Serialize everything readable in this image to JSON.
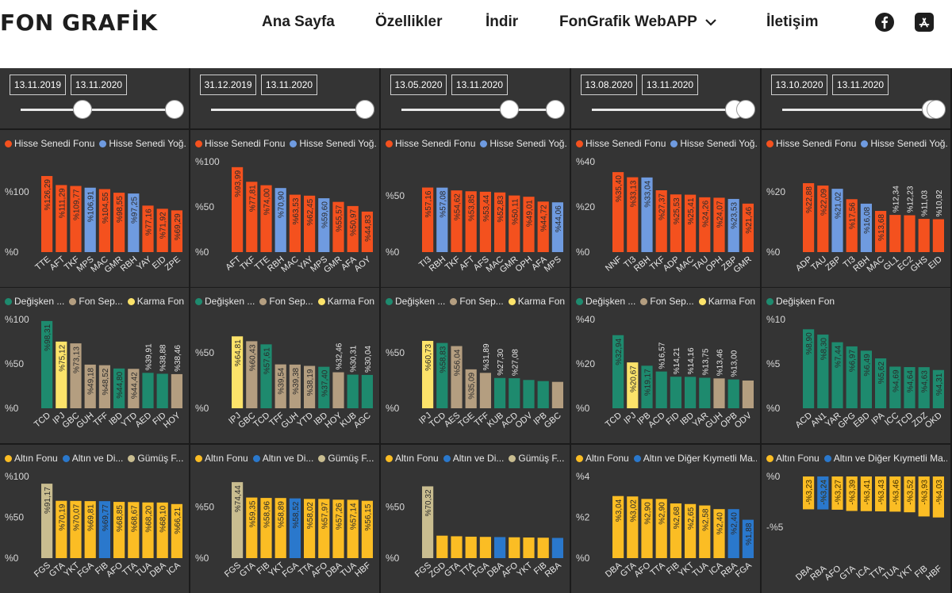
{
  "nav": {
    "logo": "FON GRAFİK",
    "items": [
      "Ana Sayfa",
      "Özellikler",
      "İndir",
      "FonGrafik WebAPP",
      "İletişim"
    ],
    "icons": [
      "chevron-down-icon",
      "facebook-icon",
      "app-store-icon"
    ]
  },
  "colors": {
    "orange": "#f4511e",
    "blue": "#6f9be0",
    "teal": "#1e8a6e",
    "tan": "#b49e80",
    "yellow": "#fce36a",
    "gold": "#fbbd24",
    "blue2": "#2a78cc",
    "khaki": "#c9bd90"
  },
  "columns": [
    {
      "range": {
        "start": "13.11.2019",
        "end": "13.11.2020",
        "slider_from": 0.4,
        "slider_to": 1.0
      }
    },
    {
      "range": {
        "start": "31.12.2019",
        "end": "13.11.2020",
        "slider_from": 1.0,
        "slider_to": 1.0
      }
    },
    {
      "range": {
        "start": "13.05.2020",
        "end": "13.11.2020",
        "slider_from": 0.7,
        "slider_to": 1.0
      }
    },
    {
      "range": {
        "start": "13.08.2020",
        "end": "13.11.2020",
        "slider_from": 0.93,
        "slider_to": 1.0
      }
    },
    {
      "range": {
        "start": "13.10.2020",
        "end": "13.11.2020",
        "slider_from": 0.97,
        "slider_to": 1.0
      }
    }
  ],
  "chart_data": [
    {
      "type": "bar",
      "row": 0,
      "col": 0,
      "legend": [
        {
          "label": "Hisse Senedi Fonu",
          "color": "#f4511e"
        },
        {
          "label": "Hisse Senedi Yoğ...",
          "color": "#6f9be0"
        }
      ],
      "yticks": [
        "%0",
        "%100"
      ],
      "ylim": [
        0,
        150
      ],
      "categories": [
        "TTE",
        "AFT",
        "TKF",
        "MPS",
        "MAC",
        "GMR",
        "RBH",
        "YAY",
        "EID",
        "ZPE"
      ],
      "values": [
        126.29,
        111.29,
        109.77,
        106.91,
        104.55,
        98.55,
        97.25,
        77.16,
        71.92,
        69.29
      ],
      "labels": [
        "%126,29",
        "%111,29",
        "%109,77",
        "%106,91",
        "%104,55",
        "%98,55",
        "%97,25",
        "%77,16",
        "%71,92",
        "%69,29"
      ],
      "colors": [
        "#f4511e",
        "#f4511e",
        "#f4511e",
        "#6f9be0",
        "#f4511e",
        "#f4511e",
        "#6f9be0",
        "#f4511e",
        "#f4511e",
        "#f4511e"
      ]
    },
    {
      "type": "bar",
      "row": 0,
      "col": 1,
      "legend": [
        {
          "label": "Hisse Senedi Fonu",
          "color": "#f4511e"
        },
        {
          "label": "Hisse Senedi Yoğ...",
          "color": "#6f9be0"
        }
      ],
      "yticks": [
        "%0",
        "%50",
        "%100"
      ],
      "ylim": [
        0,
        100
      ],
      "categories": [
        "AFT",
        "TKF",
        "TTE",
        "RBH",
        "MAC",
        "YAY",
        "MPS",
        "GMR",
        "AFA",
        "AOY"
      ],
      "values": [
        93.99,
        77.81,
        74.0,
        70.9,
        63.53,
        62.45,
        59.6,
        55.57,
        50.97,
        44.83
      ],
      "labels": [
        "%93,99",
        "%77,81",
        "%74,00",
        "%70,90",
        "%63,53",
        "%62,45",
        "%59,60",
        "%55,57",
        "%50,97",
        "%44,83"
      ],
      "colors": [
        "#f4511e",
        "#f4511e",
        "#f4511e",
        "#6f9be0",
        "#f4511e",
        "#f4511e",
        "#6f9be0",
        "#f4511e",
        "#f4511e",
        "#f4511e"
      ]
    },
    {
      "type": "bar",
      "row": 0,
      "col": 2,
      "legend": [
        {
          "label": "Hisse Senedi Fonu",
          "color": "#f4511e"
        },
        {
          "label": "Hisse Senedi Yoğ...",
          "color": "#6f9be0"
        }
      ],
      "yticks": [
        "%0",
        "%50"
      ],
      "ylim": [
        0,
        80
      ],
      "categories": [
        "TI3",
        "RBH",
        "TKF",
        "AFT",
        "AFS",
        "MAC",
        "GMR",
        "OPH",
        "AFA",
        "MPS"
      ],
      "values": [
        57.16,
        57.08,
        54.62,
        53.85,
        53.44,
        52.83,
        50.11,
        49.01,
        44.72,
        44.06
      ],
      "labels": [
        "%57,16",
        "%57,08",
        "%54,62",
        "%53,85",
        "%53,44",
        "%52,83",
        "%50,11",
        "%49,01",
        "%44,72",
        "%44,06"
      ],
      "colors": [
        "#f4511e",
        "#6f9be0",
        "#f4511e",
        "#f4511e",
        "#f4511e",
        "#f4511e",
        "#f4511e",
        "#f4511e",
        "#f4511e",
        "#6f9be0"
      ]
    },
    {
      "type": "bar",
      "row": 0,
      "col": 3,
      "legend": [
        {
          "label": "Hisse Senedi Fonu",
          "color": "#f4511e"
        },
        {
          "label": "Hisse Senedi Yoğ...",
          "color": "#6f9be0"
        }
      ],
      "yticks": [
        "%0",
        "%20",
        "%40"
      ],
      "ylim": [
        0,
        40
      ],
      "categories": [
        "NNF",
        "TI3",
        "RBH",
        "TKF",
        "ADP",
        "MAC",
        "TAU",
        "OPH",
        "ZBP",
        "GMR"
      ],
      "values": [
        35.4,
        33.13,
        33.04,
        27.37,
        25.53,
        25.41,
        24.26,
        24.07,
        23.53,
        21.46
      ],
      "labels": [
        "%35,40",
        "%33,13",
        "%33,04",
        "%27,37",
        "%25,53",
        "%25,41",
        "%24,26",
        "%24,07",
        "%23,53",
        "%21,46"
      ],
      "colors": [
        "#f4511e",
        "#f4511e",
        "#6f9be0",
        "#f4511e",
        "#f4511e",
        "#f4511e",
        "#f4511e",
        "#f4511e",
        "#6f9be0",
        "#f4511e"
      ]
    },
    {
      "type": "bar",
      "row": 0,
      "col": 4,
      "legend": [
        {
          "label": "Hisse Senedi Fonu",
          "color": "#f4511e"
        },
        {
          "label": "Hisse Senedi Yoğ...",
          "color": "#6f9be0"
        }
      ],
      "yticks": [
        "%0",
        "%20"
      ],
      "ylim": [
        0,
        30
      ],
      "categories": [
        "ADP",
        "TAU",
        "ZBP",
        "TI3",
        "RBH",
        "MAC",
        "GL1",
        "EC2",
        "GHS",
        "EID"
      ],
      "values": [
        22.88,
        22.09,
        21.02,
        17.56,
        16.08,
        13.68,
        12.34,
        12.23,
        11.03,
        10.92
      ],
      "labels": [
        "%22,88",
        "%22,09",
        "%21,02",
        "%17,56",
        "%16,08",
        "%13,68",
        "%12,34",
        "%12,23",
        "%11,03",
        "%10,92"
      ],
      "colors": [
        "#f4511e",
        "#f4511e",
        "#6f9be0",
        "#f4511e",
        "#6f9be0",
        "#f4511e",
        "#f4511e",
        "#f4511e",
        "#f4511e",
        "#f4511e"
      ]
    },
    {
      "type": "bar",
      "row": 1,
      "col": 0,
      "legend": [
        {
          "label": "Değişken ...",
          "color": "#1e8a6e"
        },
        {
          "label": "Fon Sep...",
          "color": "#b49e80"
        },
        {
          "label": "Karma Fon",
          "color": "#fce36a"
        }
      ],
      "yticks": [
        "%0",
        "%50",
        "%100"
      ],
      "ylim": [
        0,
        100
      ],
      "categories": [
        "TCD",
        "IPJ",
        "GBC",
        "GUH",
        "TFF",
        "IBD",
        "YTD",
        "AED",
        "FID",
        "HOY"
      ],
      "values": [
        98.31,
        75.12,
        73.13,
        49.18,
        48.52,
        44.8,
        44.42,
        39.91,
        38.88,
        38.46
      ],
      "labels": [
        "%98,31",
        "%75,12",
        "%73,13",
        "%49,18",
        "%48,52",
        "%44,80",
        "%44,42",
        "%39,91",
        "%38,88",
        "%38,46"
      ],
      "colors": [
        "#1e8a6e",
        "#fce36a",
        "#b49e80",
        "#b49e80",
        "#b49e80",
        "#1e8a6e",
        "#b49e80",
        "#1e8a6e",
        "#1e8a6e",
        "#b49e80"
      ]
    },
    {
      "type": "bar",
      "row": 1,
      "col": 1,
      "legend": [
        {
          "label": "Değişken ...",
          "color": "#1e8a6e"
        },
        {
          "label": "Fon Sep...",
          "color": "#b49e80"
        },
        {
          "label": "Karma Fon",
          "color": "#fce36a"
        }
      ],
      "yticks": [
        "%0",
        "%50"
      ],
      "ylim": [
        0,
        80
      ],
      "categories": [
        "IPJ",
        "GBC",
        "TCD",
        "TFF",
        "GUH",
        "YTD",
        "IBD",
        "HOY",
        "KUB",
        "AGC"
      ],
      "values": [
        64.81,
        60.43,
        57.61,
        39.54,
        39.38,
        38.19,
        37.4,
        32.46,
        30.31,
        30.04
      ],
      "labels": [
        "%64,81",
        "%60,43",
        "%57,61",
        "%39,54",
        "%39,38",
        "%38,19",
        "%37,40",
        "%32,46",
        "%30,31",
        "%30,04"
      ],
      "colors": [
        "#fce36a",
        "#b49e80",
        "#1e8a6e",
        "#b49e80",
        "#b49e80",
        "#b49e80",
        "#1e8a6e",
        "#b49e80",
        "#1e8a6e",
        "#1e8a6e"
      ]
    },
    {
      "type": "bar",
      "row": 1,
      "col": 2,
      "legend": [
        {
          "label": "Değişken ...",
          "color": "#1e8a6e"
        },
        {
          "label": "Fon Sep...",
          "color": "#b49e80"
        },
        {
          "label": "Karma Fon",
          "color": "#fce36a"
        }
      ],
      "yticks": [
        "%0",
        "%50"
      ],
      "ylim": [
        0,
        80
      ],
      "categories": [
        "IPJ",
        "TCD",
        "AES",
        "TGE",
        "TFF",
        "KUB",
        "ACD",
        "ODV",
        "IPB",
        "GBC"
      ],
      "values": [
        60.73,
        58.83,
        56.04,
        35.09,
        31.89,
        27.3,
        27.08,
        25.5,
        24.5,
        23.8
      ],
      "labels": [
        "%60,73",
        "%58,83",
        "%56,04",
        "%35,09",
        "%31,89",
        "%27,30",
        "%27,08",
        "",
        "",
        ""
      ],
      "colors": [
        "#fce36a",
        "#1e8a6e",
        "#b49e80",
        "#b49e80",
        "#b49e80",
        "#1e8a6e",
        "#1e8a6e",
        "#1e8a6e",
        "#1e8a6e",
        "#b49e80"
      ]
    },
    {
      "type": "bar",
      "row": 1,
      "col": 3,
      "legend": [
        {
          "label": "Değişken ...",
          "color": "#1e8a6e"
        },
        {
          "label": "Fon Sep...",
          "color": "#b49e80"
        },
        {
          "label": "Karma Fon",
          "color": "#fce36a"
        }
      ],
      "yticks": [
        "%0",
        "%20",
        "%40"
      ],
      "ylim": [
        0,
        40
      ],
      "categories": [
        "TCD",
        "IPJ",
        "IPB",
        "ACD",
        "FID",
        "IBD",
        "YAR",
        "GUH",
        "OPB",
        "ODV"
      ],
      "values": [
        32.94,
        20.67,
        19.17,
        16.57,
        14.21,
        14.16,
        13.75,
        13.46,
        13.0,
        12.5
      ],
      "labels": [
        "%32,94",
        "%20,67",
        "%19,17",
        "%16,57",
        "%14,21",
        "%14,16",
        "%13,75",
        "%13,46",
        "%13,00",
        ""
      ],
      "colors": [
        "#1e8a6e",
        "#fce36a",
        "#1e8a6e",
        "#1e8a6e",
        "#1e8a6e",
        "#1e8a6e",
        "#1e8a6e",
        "#b49e80",
        "#1e8a6e",
        "#b49e80"
      ]
    },
    {
      "type": "bar",
      "row": 1,
      "col": 4,
      "legend": [
        {
          "label": "Değişken Fon",
          "color": "#1e8a6e"
        }
      ],
      "yticks": [
        "%0",
        "%5",
        "%10"
      ],
      "ylim": [
        0,
        10
      ],
      "categories": [
        "ACD",
        "AN1",
        "YAR",
        "GPG",
        "EBD",
        "IPA",
        "ICC",
        "TCD",
        "ZDZ",
        "OKD"
      ],
      "values": [
        8.9,
        8.3,
        7.44,
        6.97,
        6.49,
        5.62,
        4.69,
        4.64,
        4.63,
        4.31
      ],
      "labels": [
        "%8,90",
        "%8,30",
        "%7,44",
        "%6,97",
        "%6,49",
        "%5,62",
        "%4,69",
        "%4,64",
        "%4,63",
        "%4,31"
      ],
      "colors": [
        "#1e8a6e",
        "#1e8a6e",
        "#1e8a6e",
        "#1e8a6e",
        "#1e8a6e",
        "#1e8a6e",
        "#1e8a6e",
        "#1e8a6e",
        "#1e8a6e",
        "#1e8a6e"
      ]
    },
    {
      "type": "bar",
      "row": 2,
      "col": 0,
      "legend": [
        {
          "label": "Altın Fonu",
          "color": "#fbbd24"
        },
        {
          "label": "Altın ve Di...",
          "color": "#2a78cc"
        },
        {
          "label": "Gümüş F...",
          "color": "#c9bd90"
        }
      ],
      "yticks": [
        "%0",
        "%50",
        "%100"
      ],
      "ylim": [
        0,
        100
      ],
      "categories": [
        "FGS",
        "GTA",
        "YKT",
        "FGA",
        "FIB",
        "AFO",
        "TTA",
        "TUA",
        "DBA",
        "ICA"
      ],
      "values": [
        91.17,
        70.19,
        70.07,
        69.81,
        69.77,
        68.85,
        68.67,
        68.2,
        68.1,
        66.21
      ],
      "labels": [
        "%91,17",
        "%70,19",
        "%70,07",
        "%69,81",
        "%69,77",
        "%68,85",
        "%68,67",
        "%68,20",
        "%68,10",
        "%66,21"
      ],
      "colors": [
        "#c9bd90",
        "#fbbd24",
        "#fbbd24",
        "#fbbd24",
        "#2a78cc",
        "#fbbd24",
        "#fbbd24",
        "#fbbd24",
        "#fbbd24",
        "#fbbd24"
      ]
    },
    {
      "type": "bar",
      "row": 2,
      "col": 1,
      "legend": [
        {
          "label": "Altın Fonu",
          "color": "#fbbd24"
        },
        {
          "label": "Altın ve Di...",
          "color": "#2a78cc"
        },
        {
          "label": "Gümüş F...",
          "color": "#c9bd90"
        }
      ],
      "yticks": [
        "%0",
        "%50"
      ],
      "ylim": [
        0,
        80
      ],
      "categories": [
        "FGS",
        "GTA",
        "FIB",
        "YKT",
        "FGA",
        "TTA",
        "AFO",
        "DBA",
        "TUA",
        "HBF"
      ],
      "values": [
        74.44,
        59.35,
        58.96,
        58.89,
        58.52,
        58.02,
        57.97,
        57.26,
        57.14,
        56.15
      ],
      "labels": [
        "%74,44",
        "%59,35",
        "%58,96",
        "%58,89",
        "%58,52",
        "%58,02",
        "%57,97",
        "%57,26",
        "%57,14",
        "%56,15"
      ],
      "colors": [
        "#c9bd90",
        "#fbbd24",
        "#fbbd24",
        "#fbbd24",
        "#2a78cc",
        "#fbbd24",
        "#fbbd24",
        "#fbbd24",
        "#fbbd24",
        "#fbbd24"
      ]
    },
    {
      "type": "bar",
      "row": 2,
      "col": 2,
      "legend": [
        {
          "label": "Altın Fonu",
          "color": "#fbbd24"
        },
        {
          "label": "Altın ve Di...",
          "color": "#2a78cc"
        },
        {
          "label": "Gümüş F...",
          "color": "#c9bd90"
        }
      ],
      "yticks": [
        "%0",
        "%50"
      ],
      "ylim": [
        0,
        80
      ],
      "categories": [
        "FGS",
        "ZGD",
        "GTA",
        "TTA",
        "FGA",
        "DBA",
        "AFO",
        "YKT",
        "FIB",
        "RBA"
      ],
      "values": [
        70.32,
        22.0,
        21.4,
        21.0,
        20.8,
        20.6,
        20.4,
        20.2,
        20.0,
        19.8
      ],
      "labels": [
        "%70,32",
        "",
        "",
        "",
        "",
        "",
        "",
        "",
        "",
        ""
      ],
      "colors": [
        "#c9bd90",
        "#fbbd24",
        "#fbbd24",
        "#fbbd24",
        "#fbbd24",
        "#2a78cc",
        "#fbbd24",
        "#fbbd24",
        "#fbbd24",
        "#2a78cc"
      ]
    },
    {
      "type": "bar",
      "row": 2,
      "col": 3,
      "legend": [
        {
          "label": "Altın Fonu",
          "color": "#fbbd24"
        },
        {
          "label": "Altın ve Diğer Kıymetli Ma...",
          "color": "#2a78cc"
        }
      ],
      "yticks": [
        "%0",
        "%2",
        "%4"
      ],
      "ylim": [
        0,
        4
      ],
      "categories": [
        "DBA",
        "GTA",
        "AFO",
        "TTA",
        "FIB",
        "YKT",
        "TUA",
        "ICA",
        "RBA",
        "FGA"
      ],
      "values": [
        3.04,
        3.02,
        2.9,
        2.9,
        2.68,
        2.65,
        2.58,
        2.4,
        2.4,
        1.88
      ],
      "labels": [
        "%3,04",
        "%3,02",
        "%2,90",
        "%2,90",
        "%2,68",
        "%2,65",
        "%2,58",
        "%2,40",
        "%2,40",
        "%1,88"
      ],
      "colors": [
        "#fbbd24",
        "#fbbd24",
        "#fbbd24",
        "#fbbd24",
        "#fbbd24",
        "#fbbd24",
        "#fbbd24",
        "#fbbd24",
        "#2a78cc",
        "#2a78cc"
      ]
    },
    {
      "type": "bar",
      "row": 2,
      "col": 4,
      "negative": true,
      "legend": [
        {
          "label": "Altın Fonu",
          "color": "#fbbd24"
        },
        {
          "label": "Altın ve Diğer Kıymetli Ma...",
          "color": "#2a78cc"
        }
      ],
      "yticks": [
        "%0",
        "-%5"
      ],
      "ylim": [
        -6,
        0
      ],
      "categories": [
        "DBA",
        "RBA",
        "AFO",
        "GTA",
        "ICA",
        "TTA",
        "TUA",
        "YKT",
        "FIB",
        "HBF"
      ],
      "values": [
        -3.23,
        -3.24,
        -3.27,
        -3.39,
        -3.41,
        -3.43,
        -3.46,
        -3.52,
        -3.93,
        -4.03
      ],
      "labels": [
        "-%3,23",
        "-%3,24",
        "-%3,27",
        "-%3,39",
        "-%3,41",
        "-%3,43",
        "-%3,46",
        "-%3,52",
        "-%3,93",
        "-%4,03"
      ],
      "colors": [
        "#fbbd24",
        "#2a78cc",
        "#fbbd24",
        "#fbbd24",
        "#fbbd24",
        "#fbbd24",
        "#fbbd24",
        "#fbbd24",
        "#fbbd24",
        "#fbbd24"
      ]
    }
  ]
}
